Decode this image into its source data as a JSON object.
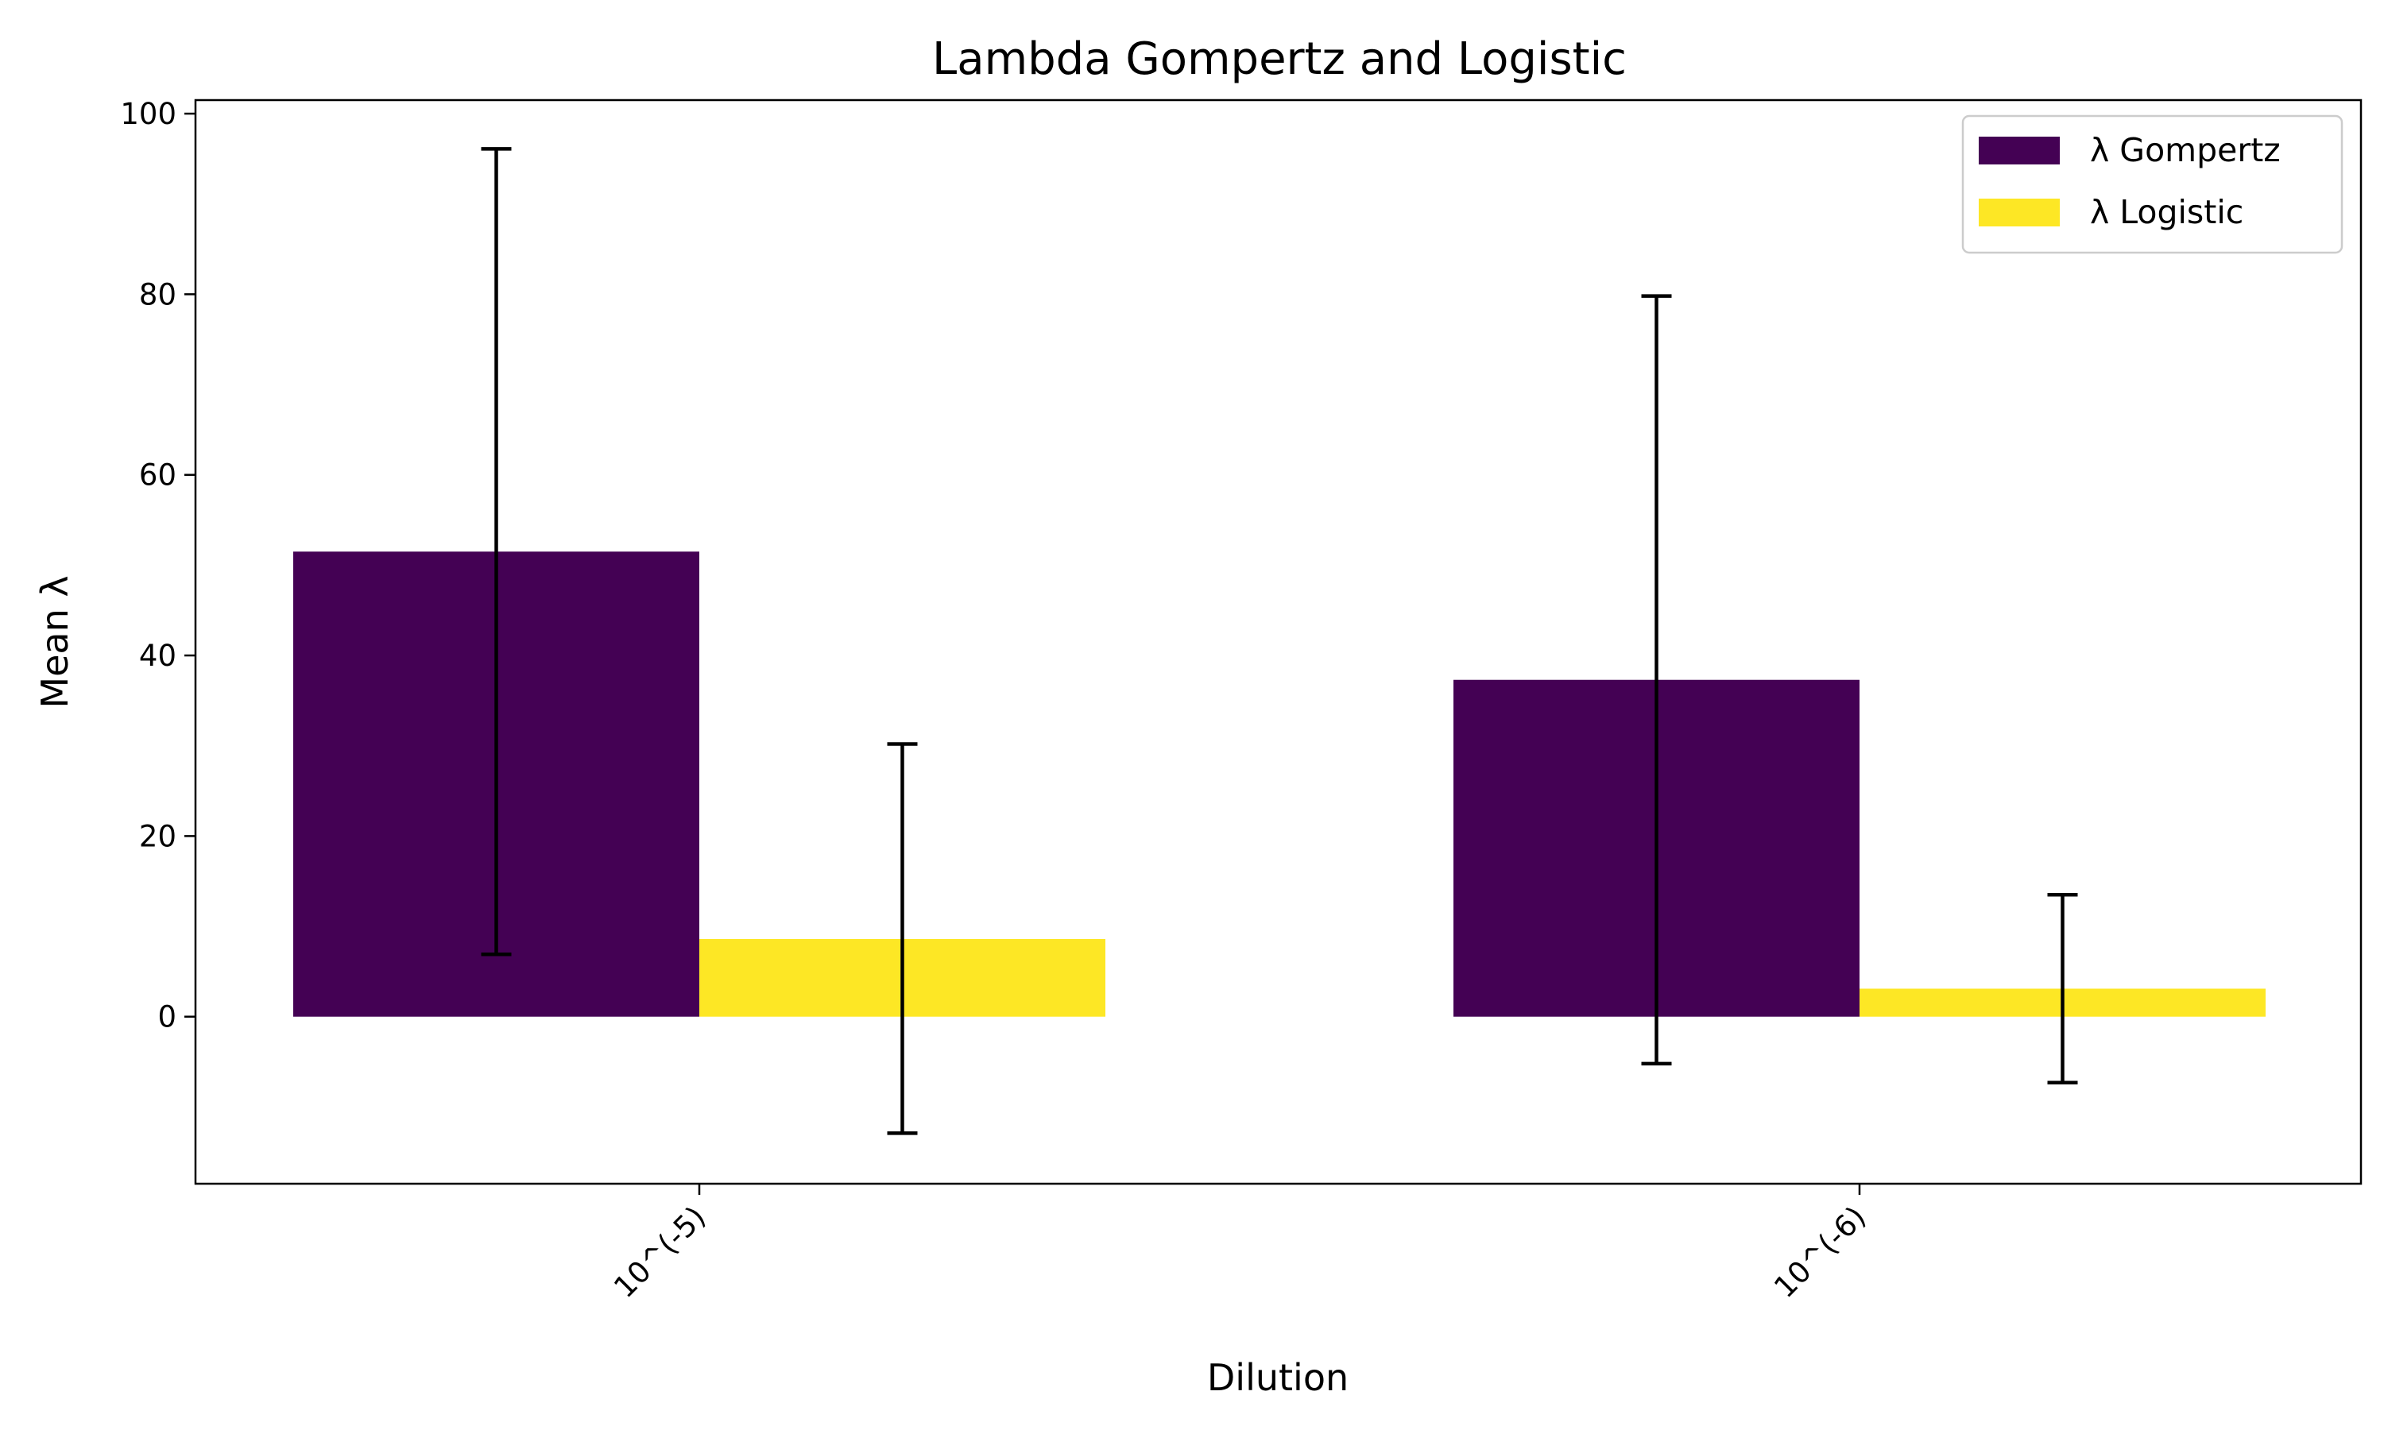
{
  "chart_data": {
    "type": "bar",
    "title": "Lambda Gompertz and Logistic",
    "xlabel": "Dilution",
    "ylabel": "Mean λ",
    "categories": [
      "10^(-5)",
      "10^(-6)"
    ],
    "series": [
      {
        "name": "λ Gompertz",
        "color": "#440154",
        "values": [
          51.5,
          37.3
        ],
        "error_low": [
          6.9,
          -5.2
        ],
        "error_high": [
          96.1,
          79.8
        ]
      },
      {
        "name": "λ Logistic",
        "color": "#fde725",
        "values": [
          8.6,
          3.1
        ],
        "error_low": [
          -12.9,
          -7.3
        ],
        "error_high": [
          30.2,
          13.5
        ]
      }
    ],
    "ylim": [
      -18.5,
      101.5
    ],
    "yticks": [
      0,
      20,
      40,
      60,
      80,
      100
    ],
    "grid": false,
    "legend_position": "top-right"
  }
}
